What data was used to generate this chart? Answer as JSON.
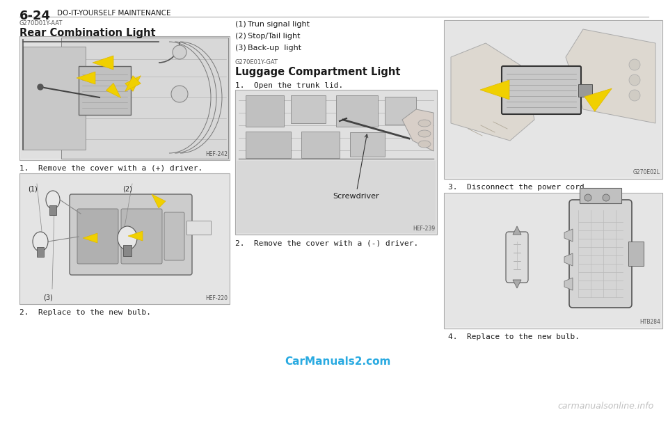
{
  "bg_color": "#ffffff",
  "header_text": "6-24",
  "header_suffix": "DO-IT-YOURSELF MAINTENANCE",
  "header_line_color": "#aaaaaa",
  "section1_code": "G270D01Y-AAT",
  "section1_title": "Rear Combination Light",
  "section1_step1": "1.  Remove the cover with a (+) driver.",
  "section1_step2": "2.  Replace to the new bulb.",
  "img1_label": "HEF-242",
  "img2_label": "HEF-220",
  "list_items": [
    "(1) Trun signal light",
    "(2) Stop/Tail light",
    "(3) Back-up  light"
  ],
  "section2_code": "G270E01Y-GAT",
  "section2_title": "Luggage Compartment Light",
  "section2_step1": "1.  Open the trunk lid.",
  "section2_step2": "2.  Remove the cover with a (-) driver.",
  "img3_label": "HEF-239",
  "img3_annotation": "Screwdriver",
  "col3_step3": "3.  Disconnect the power cord.",
  "col3_step4": "4.  Replace to the new bulb.",
  "img4_label": "G270E02L",
  "img5_label": "HTB284",
  "watermark1": "CarManuals2.com",
  "watermark1_color": "#29aae1",
  "watermark2": "carmanualsonline.info",
  "watermark2_color": "#c0c0c0",
  "text_color": "#1a1a1a",
  "gray_text": "#555555",
  "img_bg": "#e8e8e8",
  "img_border": "#aaaaaa",
  "yellow": "#f0d000",
  "yellow_dark": "#e0b800"
}
